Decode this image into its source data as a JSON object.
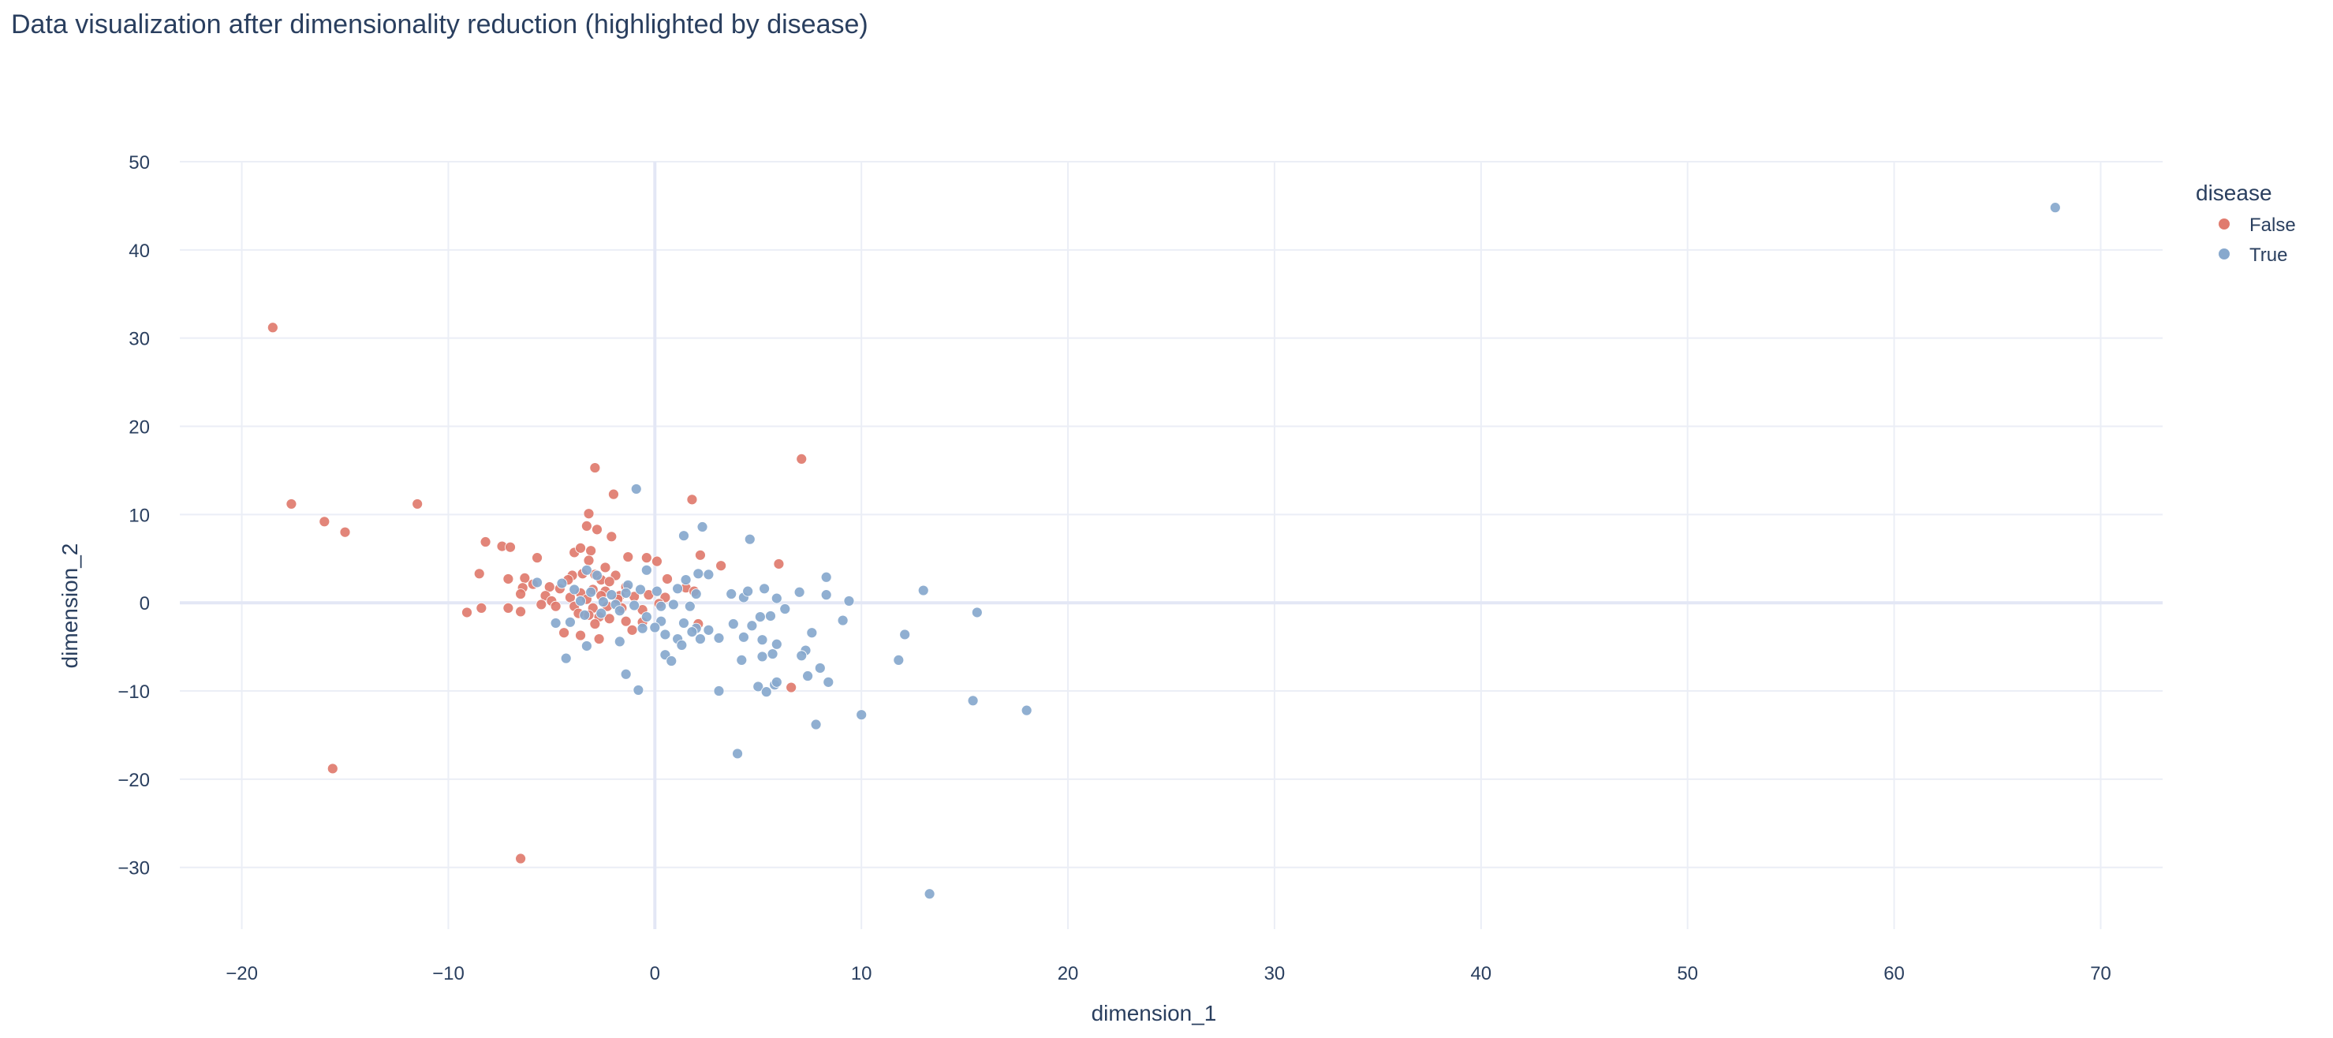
{
  "chart_data": {
    "type": "scatter",
    "title": "Data visualization after dimensionality reduction (highlighted by disease)",
    "xlabel": "dimension_1",
    "ylabel": "dimension_2",
    "xlim": [
      -23,
      73
    ],
    "ylim": [
      -37,
      50
    ],
    "xticks": [
      -20,
      -10,
      0,
      10,
      20,
      30,
      40,
      50,
      60,
      70
    ],
    "yticks": [
      -30,
      -20,
      -10,
      0,
      10,
      20,
      30,
      40,
      50
    ],
    "xtick_labels": [
      "−20",
      "−10",
      "0",
      "10",
      "20",
      "30",
      "40",
      "50",
      "60",
      "70"
    ],
    "ytick_labels": [
      "−30",
      "−20",
      "−10",
      "0",
      "10",
      "20",
      "30",
      "40",
      "50"
    ],
    "grid": true,
    "legend": {
      "title": "disease",
      "position": "top-right"
    },
    "series": [
      {
        "name": "False",
        "color": "#e07b6e",
        "points": [
          [
            -18.5,
            31.2
          ],
          [
            -17.6,
            11.2
          ],
          [
            -16.0,
            9.2
          ],
          [
            -15.0,
            8.0
          ],
          [
            -15.6,
            -18.8
          ],
          [
            -11.5,
            11.2
          ],
          [
            -6.5,
            -29.0
          ],
          [
            7.1,
            16.3
          ],
          [
            1.8,
            11.7
          ],
          [
            -2.9,
            15.3
          ],
          [
            -2.0,
            12.3
          ],
          [
            -3.2,
            10.1
          ],
          [
            -3.3,
            8.7
          ],
          [
            -2.8,
            8.3
          ],
          [
            -2.1,
            7.5
          ],
          [
            -1.3,
            5.2
          ],
          [
            -0.4,
            5.1
          ],
          [
            0.1,
            4.7
          ],
          [
            2.2,
            5.4
          ],
          [
            3.2,
            4.2
          ],
          [
            6.0,
            4.4
          ],
          [
            -8.2,
            6.9
          ],
          [
            -7.4,
            6.4
          ],
          [
            -7.0,
            6.3
          ],
          [
            -5.7,
            5.1
          ],
          [
            -3.9,
            5.7
          ],
          [
            -3.6,
            6.2
          ],
          [
            -3.1,
            5.9
          ],
          [
            -3.2,
            4.8
          ],
          [
            -2.4,
            4.0
          ],
          [
            -4.0,
            3.1
          ],
          [
            -4.2,
            2.6
          ],
          [
            -3.5,
            3.3
          ],
          [
            -2.9,
            3.2
          ],
          [
            -1.9,
            3.1
          ],
          [
            -2.6,
            2.6
          ],
          [
            -2.2,
            2.4
          ],
          [
            -1.4,
            1.8
          ],
          [
            -5.9,
            2.1
          ],
          [
            -6.3,
            2.8
          ],
          [
            -7.1,
            2.7
          ],
          [
            -8.5,
            3.3
          ],
          [
            -6.4,
            1.7
          ],
          [
            -6.5,
            1.0
          ],
          [
            -5.1,
            1.8
          ],
          [
            -4.6,
            1.6
          ],
          [
            -3.6,
            1.1
          ],
          [
            -3.0,
            1.5
          ],
          [
            -2.4,
            1.3
          ],
          [
            -1.7,
            0.8
          ],
          [
            -5.3,
            0.8
          ],
          [
            -5.0,
            0.2
          ],
          [
            -4.1,
            0.6
          ],
          [
            -3.3,
            0.4
          ],
          [
            -2.6,
            0.8
          ],
          [
            -1.8,
            0.4
          ],
          [
            -1.0,
            0.7
          ],
          [
            -0.3,
            0.9
          ],
          [
            0.5,
            0.6
          ],
          [
            0.6,
            2.7
          ],
          [
            1.5,
            1.7
          ],
          [
            1.9,
            1.3
          ],
          [
            -5.5,
            -0.2
          ],
          [
            -4.8,
            -0.4
          ],
          [
            -3.9,
            -0.4
          ],
          [
            -3.0,
            -0.6
          ],
          [
            -2.3,
            -0.4
          ],
          [
            -1.6,
            -0.6
          ],
          [
            -7.1,
            -0.6
          ],
          [
            -8.4,
            -0.6
          ],
          [
            -9.1,
            -1.1
          ],
          [
            -6.5,
            -1.0
          ],
          [
            -3.7,
            -1.2
          ],
          [
            -3.2,
            -1.4
          ],
          [
            -2.7,
            -1.6
          ],
          [
            -2.2,
            -1.8
          ],
          [
            -1.4,
            -2.1
          ],
          [
            -0.6,
            -2.2
          ],
          [
            2.1,
            -2.4
          ],
          [
            -2.9,
            -2.4
          ],
          [
            -1.1,
            -3.1
          ],
          [
            -4.4,
            -3.4
          ],
          [
            -3.6,
            -3.7
          ],
          [
            -2.7,
            -4.1
          ],
          [
            6.6,
            -9.6
          ],
          [
            0.2,
            -0.1
          ],
          [
            -0.6,
            -0.8
          ]
        ]
      },
      {
        "name": "True",
        "color": "#87a8cd",
        "points": [
          [
            67.8,
            44.8
          ],
          [
            -0.9,
            12.9
          ],
          [
            2.3,
            8.6
          ],
          [
            1.4,
            7.6
          ],
          [
            4.6,
            7.2
          ],
          [
            8.3,
            2.9
          ],
          [
            -5.7,
            2.3
          ],
          [
            -4.5,
            2.2
          ],
          [
            -3.3,
            3.7
          ],
          [
            -2.8,
            3.1
          ],
          [
            -1.3,
            2.0
          ],
          [
            -0.4,
            3.7
          ],
          [
            2.1,
            3.3
          ],
          [
            1.5,
            2.6
          ],
          [
            2.6,
            3.2
          ],
          [
            -3.9,
            1.5
          ],
          [
            -3.1,
            1.2
          ],
          [
            -2.1,
            0.9
          ],
          [
            -1.4,
            1.1
          ],
          [
            -0.7,
            1.5
          ],
          [
            0.1,
            1.3
          ],
          [
            1.1,
            1.6
          ],
          [
            2.0,
            1.0
          ],
          [
            3.7,
            1.0
          ],
          [
            4.3,
            0.6
          ],
          [
            4.5,
            1.3
          ],
          [
            5.3,
            1.6
          ],
          [
            5.9,
            0.5
          ],
          [
            7.0,
            1.2
          ],
          [
            8.3,
            0.9
          ],
          [
            9.4,
            0.2
          ],
          [
            13.0,
            1.4
          ],
          [
            15.6,
            -1.1
          ],
          [
            -3.6,
            0.2
          ],
          [
            -2.5,
            0.1
          ],
          [
            -1.9,
            -0.2
          ],
          [
            -1.0,
            -0.3
          ],
          [
            0.3,
            -0.4
          ],
          [
            0.9,
            -0.2
          ],
          [
            1.7,
            -0.4
          ],
          [
            6.3,
            -0.7
          ],
          [
            -4.8,
            -2.3
          ],
          [
            -4.1,
            -2.2
          ],
          [
            -3.4,
            -1.4
          ],
          [
            -2.6,
            -1.2
          ],
          [
            -1.7,
            -0.9
          ],
          [
            -0.4,
            -1.6
          ],
          [
            0.3,
            -2.1
          ],
          [
            1.4,
            -2.3
          ],
          [
            2.0,
            -2.9
          ],
          [
            2.6,
            -3.1
          ],
          [
            3.1,
            -4.0
          ],
          [
            3.8,
            -2.4
          ],
          [
            4.3,
            -3.9
          ],
          [
            4.7,
            -2.6
          ],
          [
            5.1,
            -1.6
          ],
          [
            5.6,
            -1.5
          ],
          [
            5.2,
            -4.2
          ],
          [
            5.9,
            -4.7
          ],
          [
            7.6,
            -3.4
          ],
          [
            9.1,
            -2.0
          ],
          [
            12.1,
            -3.6
          ],
          [
            -0.6,
            -2.9
          ],
          [
            0.0,
            -2.8
          ],
          [
            0.5,
            -3.6
          ],
          [
            1.1,
            -4.1
          ],
          [
            1.8,
            -3.3
          ],
          [
            2.2,
            -4.1
          ],
          [
            -3.3,
            -4.9
          ],
          [
            -1.7,
            -4.4
          ],
          [
            -4.3,
            -6.3
          ],
          [
            0.5,
            -5.9
          ],
          [
            0.8,
            -6.6
          ],
          [
            1.3,
            -4.8
          ],
          [
            4.2,
            -6.5
          ],
          [
            5.2,
            -6.1
          ],
          [
            5.7,
            -5.8
          ],
          [
            7.3,
            -5.4
          ],
          [
            7.1,
            -6.0
          ],
          [
            7.4,
            -8.3
          ],
          [
            8.0,
            -7.4
          ],
          [
            8.4,
            -9.0
          ],
          [
            11.8,
            -6.5
          ],
          [
            -1.4,
            -8.1
          ],
          [
            -0.8,
            -9.9
          ],
          [
            3.1,
            -10.0
          ],
          [
            5.0,
            -9.5
          ],
          [
            5.4,
            -10.1
          ],
          [
            5.8,
            -9.3
          ],
          [
            5.9,
            -9.0
          ],
          [
            10.0,
            -12.7
          ],
          [
            7.8,
            -13.8
          ],
          [
            15.4,
            -11.1
          ],
          [
            18.0,
            -12.2
          ],
          [
            4.0,
            -17.1
          ],
          [
            13.3,
            -33.0
          ]
        ]
      }
    ]
  }
}
